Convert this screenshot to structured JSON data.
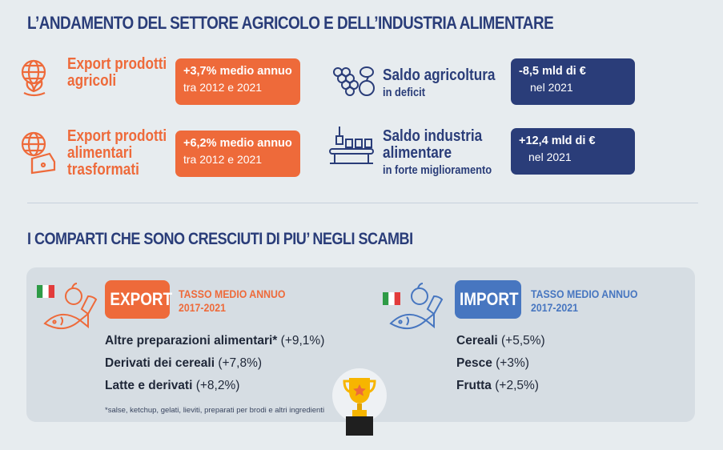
{
  "section1": {
    "title": "L’ANDAMENTO DEL SETTORE AGRICOLO E DELL’INDUSTRIA ALIMENTARE",
    "items": [
      {
        "label_lines": [
          "Export prodotti",
          "agricoli"
        ],
        "value": "+3,7% medio annuo",
        "detail": "tra 2012 e 2021",
        "icon": "globe-plant-icon"
      },
      {
        "label_lines": [
          "Export prodotti",
          "alimentari",
          "trasformati"
        ],
        "value": "+6,2% medio annuo",
        "detail": "tra 2012 e 2021",
        "icon": "globe-cheese-icon"
      },
      {
        "label_lines": [
          "Saldo agricoltura"
        ],
        "sub": "in deficit",
        "value": "-8,5 mld di €",
        "detail": "nel 2021",
        "icon": "grapes-fruit-icon"
      },
      {
        "label_lines": [
          "Saldo industria",
          "alimentare"
        ],
        "sub": "in forte miglioramento",
        "value": "+12,4 mld di €",
        "detail": "nel  2021",
        "icon": "conveyor-factory-icon"
      }
    ]
  },
  "section2": {
    "title": "I COMPARTI CHE SONO CRESCIUTI DI PIU’ NEGLI SCAMBI",
    "export": {
      "tag": "EXPORT",
      "period_line1": "TASSO MEDIO ANNUO",
      "period_line2": "2017-2021",
      "items": [
        {
          "name": "Altre preparazioni alimentari*",
          "value": "(+9,1%)"
        },
        {
          "name": "Derivati dei cereali",
          "value": "(+7,8%)"
        },
        {
          "name": "Latte e derivati",
          "value": "(+8,2%)"
        }
      ],
      "footnote": "*salse, ketchup, gelati, lieviti, preparati per brodi e altri ingredienti"
    },
    "import": {
      "tag": "IMPORT",
      "period_line1": "TASSO MEDIO ANNUO",
      "period_line2": "2017-2021",
      "items": [
        {
          "name": "Cereali",
          "value": "(+5,5%)"
        },
        {
          "name": "Pesce",
          "value": "(+3%)"
        },
        {
          "name": "Frutta",
          "value": "(+2,5%)"
        }
      ]
    }
  },
  "colors": {
    "orange": "#ee6a3a",
    "navy": "#2a3d79",
    "blue": "#4776c0",
    "background": "#e7ecef",
    "panel": "#d6dde3"
  }
}
